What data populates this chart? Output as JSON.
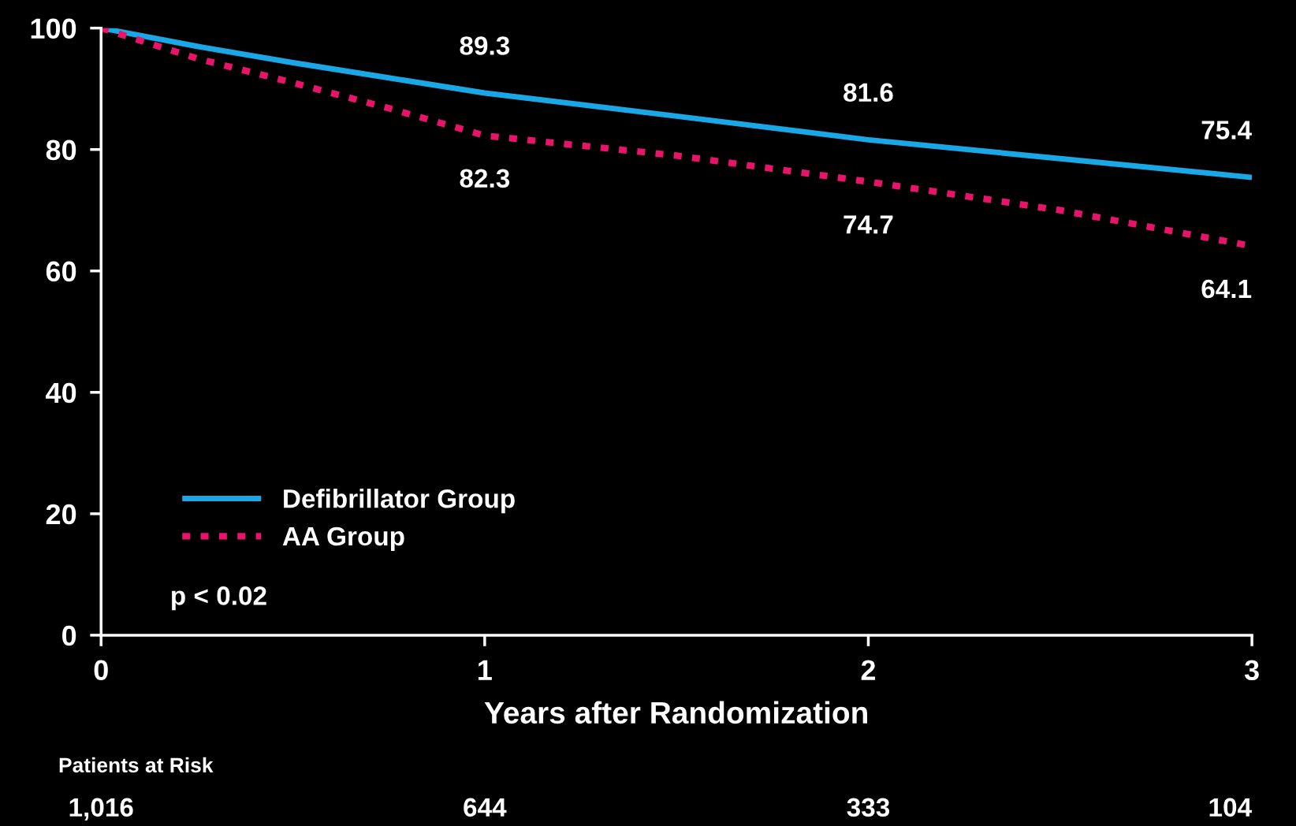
{
  "chart_data": {
    "type": "line",
    "xlabel": "Years after Randomization",
    "x": [
      0,
      0.25,
      0.5,
      0.75,
      1,
      1.5,
      2,
      2.5,
      3
    ],
    "xlim": [
      0,
      3
    ],
    "xticks": [
      0,
      1,
      2,
      3
    ],
    "ylim": [
      0,
      100
    ],
    "yticks": [
      0,
      20,
      40,
      60,
      80,
      100
    ],
    "series": [
      {
        "name": "Defibrillator Group",
        "color": "#1aa7e6",
        "line_style": "solid",
        "values": [
          100,
          97,
          94.3,
          91.8,
          89.3,
          85.5,
          81.6,
          78.5,
          75.4
        ],
        "value_labels": [
          null,
          null,
          null,
          null,
          "89.3",
          null,
          "81.6",
          null,
          "75.4"
        ]
      },
      {
        "name": "AA Group",
        "color": "#e8146a",
        "line_style": "dotted",
        "values": [
          100,
          95,
          91,
          86.8,
          82.3,
          79,
          74.7,
          70,
          64.1
        ],
        "value_labels": [
          null,
          null,
          null,
          null,
          "82.3",
          null,
          "74.7",
          null,
          "64.1"
        ]
      }
    ],
    "legend": "bottom left",
    "grid": false,
    "marker": "none",
    "annotations": [
      "p < 0.02",
      "Patients at Risk",
      "1,016",
      "644",
      "333",
      "104"
    ]
  }
}
